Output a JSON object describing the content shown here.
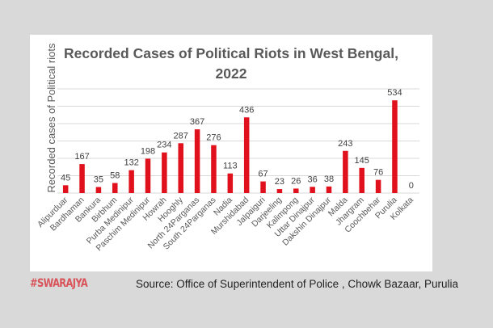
{
  "chart_data": {
    "type": "bar",
    "title": "Recorded Cases of Political Riots in West Bengal, 2022",
    "title_lines": [
      "Recorded Cases of Political Riots in West Bengal,",
      "2022"
    ],
    "xlabel": "",
    "ylabel": "Recorded cases of Political riots",
    "ylim": [
      0,
      600
    ],
    "ytick_step": 100,
    "grid": true,
    "bar_color": "#e0101c",
    "categories": [
      "Alipurduar",
      "Bardhaman",
      "Bankura",
      "Birbhum",
      "Purba Medinipur",
      "Paschim Medinipur",
      "Howrah",
      "Hooghly",
      "North 24Parganas",
      "South 24Parganas",
      "Nadia",
      "Murshidabad",
      "Jalpaiguri",
      "Darjeeling",
      "Kalimpong",
      "Uttar Dinajpur",
      "Dakshin Dinajpur",
      "Malda",
      "Jhargram",
      "Coochbehar",
      "Purulia",
      "Kolkata"
    ],
    "values": [
      45,
      167,
      35,
      58,
      132,
      198,
      234,
      287,
      367,
      276,
      113,
      436,
      67,
      23,
      26,
      36,
      38,
      243,
      145,
      76,
      534,
      0
    ]
  },
  "footer": {
    "brand": "#SWARAJYA",
    "source": "Source: Office of Superintendent of Police , Chowk Bazaar, Purulia"
  }
}
